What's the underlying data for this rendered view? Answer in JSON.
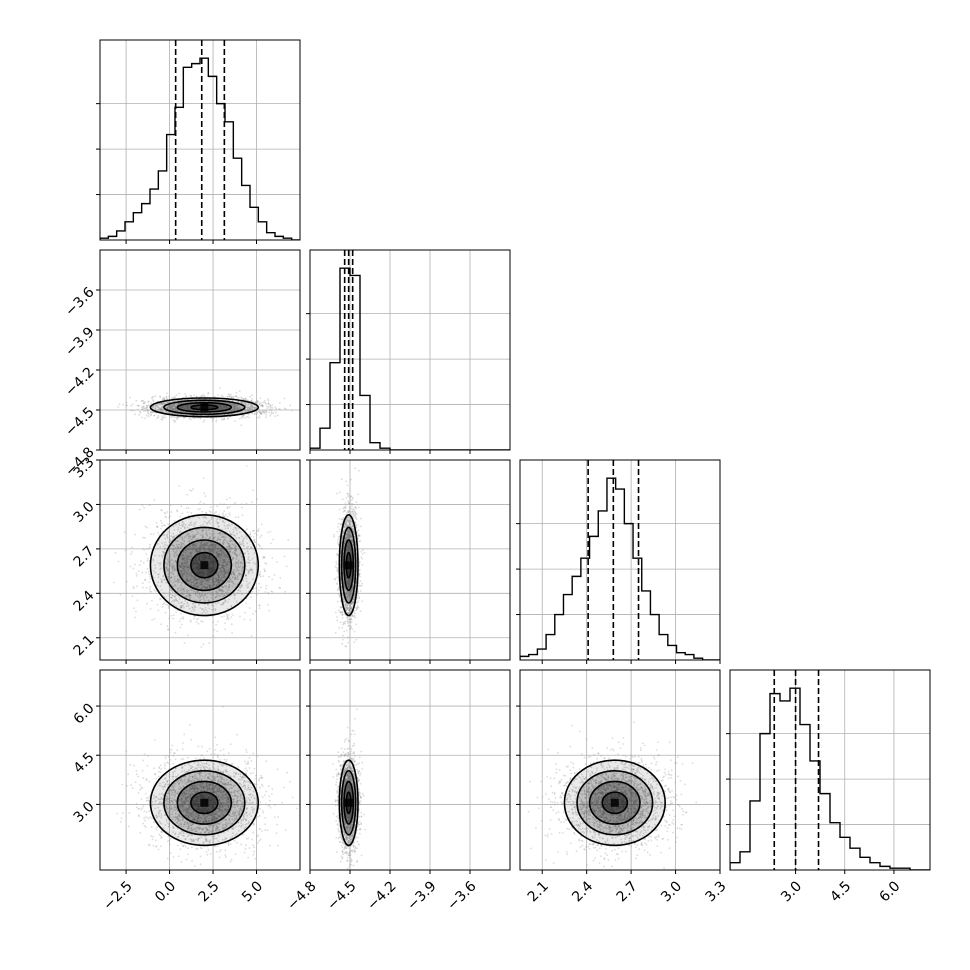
{
  "chart_data": {
    "type": "corner",
    "params": [
      {
        "key": "a",
        "range": [
          -4.0,
          7.5
        ],
        "hist_ylim": [
          0,
          1.1
        ],
        "quantiles": [
          0.35,
          1.85,
          3.15
        ],
        "ticks": [
          -2.5,
          0.0,
          2.5,
          5.0
        ],
        "tick_labels": [
          "−2.5",
          "0.0",
          "2.5",
          "5.0"
        ]
      },
      {
        "key": "b",
        "range": [
          -4.8,
          -3.3
        ],
        "hist_ylim": [
          0,
          1.1
        ],
        "quantiles": [
          -4.54,
          -4.51,
          -4.48
        ],
        "ticks": [
          -4.8,
          -4.5,
          -4.2,
          -3.9,
          -3.6
        ],
        "tick_labels": [
          "−4.8",
          "−4.5",
          "−4.2",
          "−3.9",
          "−3.6"
        ]
      },
      {
        "key": "c",
        "range": [
          1.95,
          3.3
        ],
        "hist_ylim": [
          0,
          1.1
        ],
        "quantiles": [
          2.41,
          2.58,
          2.75
        ],
        "ticks": [
          2.1,
          2.4,
          2.7,
          3.0,
          3.3
        ],
        "tick_labels": [
          "2.1",
          "2.4",
          "2.7",
          "3.0",
          "3.3"
        ]
      },
      {
        "key": "d",
        "range": [
          1.0,
          7.1
        ],
        "hist_ylim": [
          0,
          1.1
        ],
        "quantiles": [
          2.35,
          3.0,
          3.7
        ],
        "ticks": [
          3.0,
          4.5,
          6.0
        ],
        "tick_labels": [
          "3.0",
          "4.5",
          "6.0"
        ]
      }
    ],
    "histograms": [
      [
        0.01,
        0.02,
        0.05,
        0.1,
        0.15,
        0.2,
        0.28,
        0.38,
        0.58,
        0.73,
        0.95,
        0.97,
        1.0,
        0.9,
        0.75,
        0.65,
        0.45,
        0.3,
        0.18,
        0.1,
        0.04,
        0.02,
        0.01,
        0
      ],
      [
        0.01,
        0.12,
        0.48,
        1.0,
        0.96,
        0.3,
        0.04,
        0.01,
        0,
        0,
        0,
        0,
        0,
        0,
        0,
        0,
        0,
        0,
        0,
        0
      ],
      [
        0.02,
        0.03,
        0.06,
        0.14,
        0.25,
        0.36,
        0.46,
        0.56,
        0.68,
        0.82,
        1.0,
        0.94,
        0.75,
        0.56,
        0.38,
        0.25,
        0.14,
        0.08,
        0.04,
        0.03,
        0.01,
        0,
        0
      ],
      [
        0.04,
        0.1,
        0.38,
        0.75,
        0.97,
        0.93,
        1.0,
        0.8,
        0.6,
        0.42,
        0.26,
        0.18,
        0.12,
        0.07,
        0.04,
        0.02,
        0.01,
        0.01,
        0,
        0
      ]
    ],
    "pair_densities": [
      {
        "x": 0,
        "y": 1,
        "mean": [
          2.0,
          -4.48
        ],
        "sd": [
          1.55,
          0.035
        ],
        "tilt": 0
      },
      {
        "x": 0,
        "y": 2,
        "mean": [
          2.0,
          2.59
        ],
        "sd": [
          1.55,
          0.17
        ],
        "tilt": 0
      },
      {
        "x": 1,
        "y": 2,
        "mean": [
          -4.51,
          2.59
        ],
        "sd": [
          0.035,
          0.17
        ],
        "tilt": 0
      },
      {
        "x": 0,
        "y": 3,
        "mean": [
          2.0,
          3.05
        ],
        "sd": [
          1.55,
          0.65
        ],
        "tilt": 0
      },
      {
        "x": 1,
        "y": 3,
        "mean": [
          -4.51,
          3.05
        ],
        "sd": [
          0.035,
          0.65
        ],
        "tilt": 0
      },
      {
        "x": 2,
        "y": 3,
        "mean": [
          2.59,
          3.05
        ],
        "sd": [
          0.17,
          0.65
        ],
        "tilt": 0
      }
    ],
    "contour_levels_sigma": [
      0.5,
      1.0,
      1.5,
      2.0
    ],
    "grid": true,
    "quantile_line_style": "dashed",
    "colors": {
      "line": "#000000",
      "points": "#9a9a9a",
      "density": "#000000",
      "grid": "#b0b0b0"
    }
  }
}
